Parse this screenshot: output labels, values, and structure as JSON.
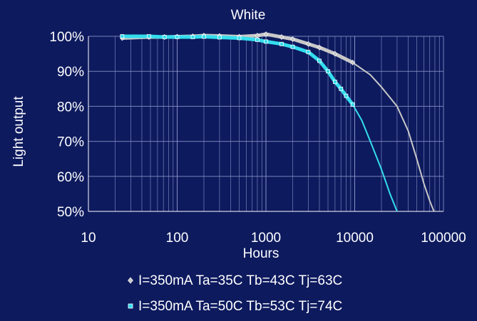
{
  "chart_data": {
    "type": "line",
    "title": "White",
    "xlabel": "Hours",
    "ylabel": "Light output",
    "xscale": "log",
    "xlim": [
      10,
      100000
    ],
    "ylim": [
      50,
      100
    ],
    "xticks": [
      "10",
      "100",
      "1000",
      "10000",
      "100000"
    ],
    "yticks": [
      "50%",
      "60%",
      "70%",
      "80%",
      "90%",
      "100%"
    ],
    "grid": true,
    "legend_position": "bottom",
    "series": [
      {
        "name": "I=350mA Ta=35C Tb=43C Tj=63C",
        "color": "#c8c8c8",
        "marker": "diamond",
        "measured": [
          [
            24,
            99.5
          ],
          [
            48,
            99.8
          ],
          [
            72,
            99.8
          ],
          [
            100,
            99.9
          ],
          [
            150,
            100
          ],
          [
            200,
            100.2
          ],
          [
            300,
            100.1
          ],
          [
            500,
            99.9
          ],
          [
            800,
            100.2
          ],
          [
            1000,
            100.6
          ],
          [
            1500,
            99.8
          ],
          [
            2000,
            99.2
          ],
          [
            3000,
            97.8
          ],
          [
            4000,
            96.8
          ],
          [
            6000,
            95
          ],
          [
            9500,
            92.5
          ]
        ],
        "extrapolated": [
          [
            9500,
            92.5
          ],
          [
            15000,
            89
          ],
          [
            20000,
            85.5
          ],
          [
            30000,
            80
          ],
          [
            40000,
            73
          ],
          [
            50000,
            65
          ],
          [
            60000,
            58
          ],
          [
            70000,
            53
          ],
          [
            78000,
            50
          ]
        ]
      },
      {
        "name": "I=350mA Ta=50C Tb=53C Tj=74C",
        "color": "#33ddee",
        "marker": "square",
        "measured": [
          [
            24,
            100
          ],
          [
            48,
            100
          ],
          [
            72,
            99.8
          ],
          [
            100,
            99.8
          ],
          [
            150,
            99.8
          ],
          [
            200,
            99.9
          ],
          [
            300,
            99.7
          ],
          [
            500,
            99.5
          ],
          [
            800,
            99
          ],
          [
            1000,
            98.5
          ],
          [
            1500,
            97.8
          ],
          [
            2000,
            97
          ],
          [
            3000,
            95.5
          ],
          [
            4000,
            93
          ],
          [
            5000,
            90
          ],
          [
            6000,
            87
          ],
          [
            7000,
            85
          ],
          [
            8000,
            83
          ],
          [
            9500,
            80.5
          ]
        ],
        "extrapolated": [
          [
            9500,
            80.5
          ],
          [
            12000,
            76
          ],
          [
            15000,
            70
          ],
          [
            20000,
            62
          ],
          [
            25000,
            55
          ],
          [
            30000,
            50
          ]
        ]
      }
    ]
  }
}
